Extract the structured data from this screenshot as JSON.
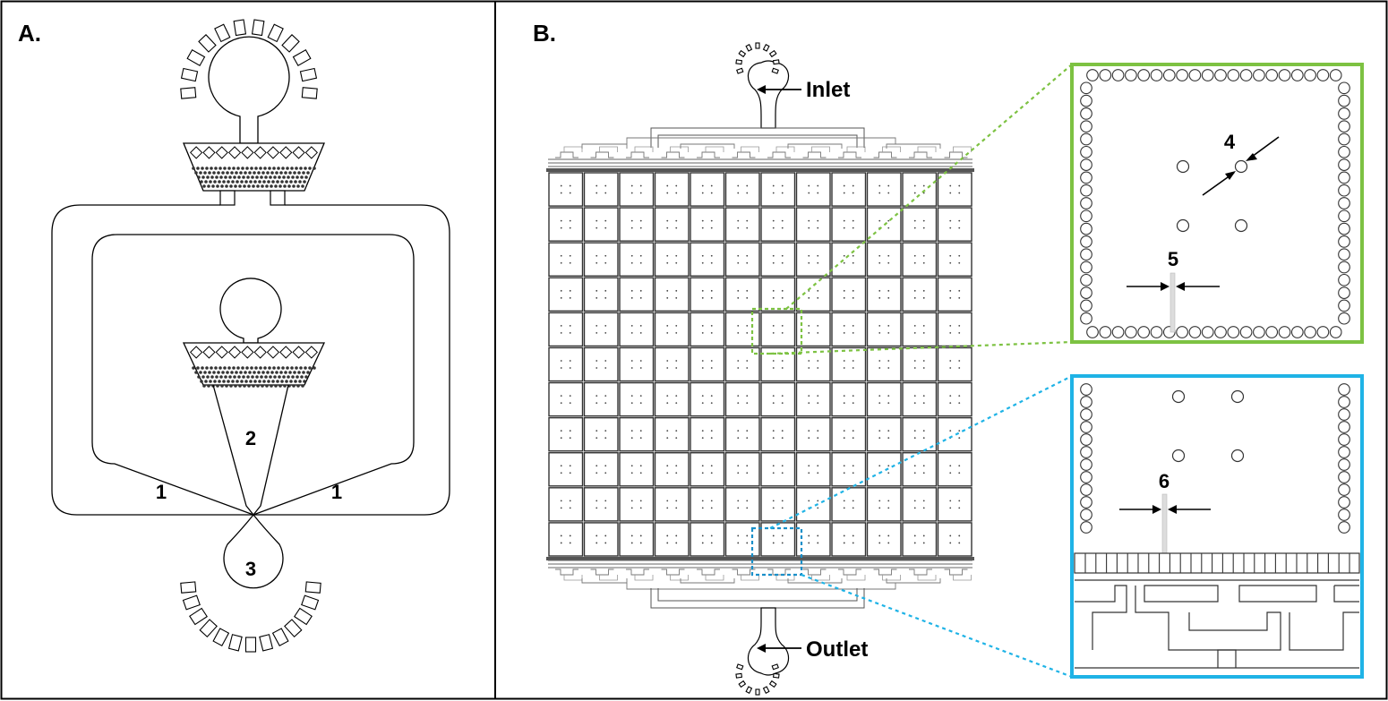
{
  "panel_a": {
    "label": "A.",
    "numbers": {
      "n1_left": "1",
      "n1_right": "1",
      "n2": "2",
      "n3": "3"
    }
  },
  "panel_b": {
    "label": "B.",
    "inlet_label": "Inlet",
    "outlet_label": "Outlet",
    "grid": {
      "rows": 11,
      "cols": 12
    },
    "detail_green": {
      "border_color": "#7dc242",
      "marker_4": "4",
      "marker_5": "5"
    },
    "detail_blue": {
      "border_color": "#1fb3e6",
      "marker_6": "6"
    }
  }
}
